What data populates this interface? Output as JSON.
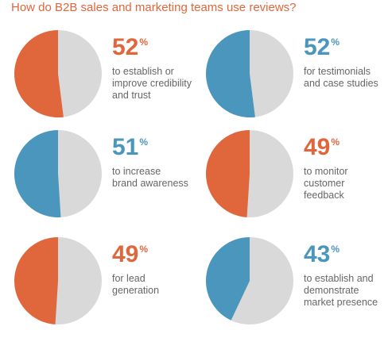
{
  "title": "How do B2B sales and marketing teams use reviews?",
  "colors": {
    "orange": "#e0663c",
    "blue": "#4a96bd",
    "gray": "#d9d9d9"
  },
  "chart_data": {
    "type": "pie",
    "title": "How do B2B sales and marketing teams use reviews?",
    "items": [
      {
        "value": 52,
        "unit": "%",
        "label": [
          "to establish or",
          "improve credibility",
          "and trust"
        ],
        "color": "#e0663c"
      },
      {
        "value": 52,
        "unit": "%",
        "label": [
          "for testimonials",
          "and case studies"
        ],
        "color": "#4a96bd"
      },
      {
        "value": 51,
        "unit": "%",
        "label": [
          "to increase",
          "brand awareness"
        ],
        "color": "#4a96bd"
      },
      {
        "value": 49,
        "unit": "%",
        "label": [
          "to monitor",
          "customer",
          "feedback"
        ],
        "color": "#e0663c"
      },
      {
        "value": 49,
        "unit": "%",
        "label": [
          "for lead",
          "generation"
        ],
        "color": "#e0663c"
      },
      {
        "value": 43,
        "unit": "%",
        "label": [
          "to establish and",
          "demonstrate",
          "market presence"
        ],
        "color": "#4a96bd"
      }
    ]
  }
}
